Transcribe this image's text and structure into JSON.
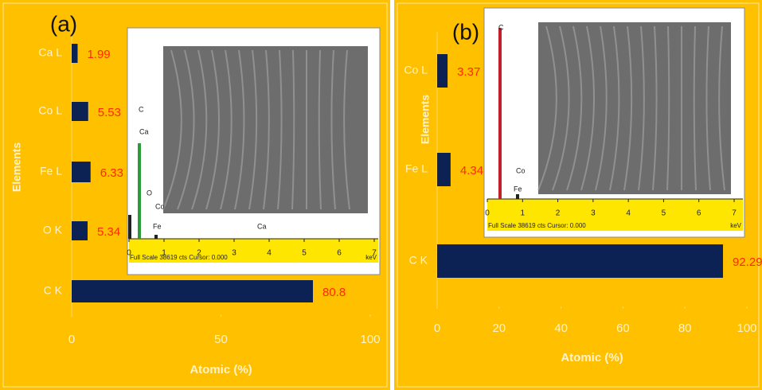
{
  "chart_data": [
    {
      "type": "bar",
      "orientation": "horizontal",
      "panel_label": "(a)",
      "categories": [
        "Ca L",
        "Co L",
        "Fe L",
        "O K",
        "C K"
      ],
      "values": [
        1.99,
        5.53,
        6.33,
        5.34,
        80.8
      ],
      "color": "#0c2154",
      "value_label_color": "#ff2a00",
      "background": "#ffc000",
      "xlim": [
        0,
        100
      ],
      "xticks": [
        0,
        50,
        100
      ],
      "xlabel": "Atomic (%)",
      "ylabel": "Elements",
      "inset": {
        "xticks": [
          0,
          1,
          2,
          3,
          4,
          5,
          6,
          7
        ],
        "unit": "keV",
        "caption": "Full Scale 38619 cts Cursor: 0.000",
        "peak_labels": [
          "C",
          "Ca",
          "O",
          "Co",
          "Fe",
          "Ca"
        ]
      }
    },
    {
      "type": "bar",
      "orientation": "horizontal",
      "panel_label": "(b)",
      "categories": [
        "Co L",
        "Fe L",
        "C K"
      ],
      "values": [
        3.37,
        4.34,
        92.29
      ],
      "color": "#0c2154",
      "value_label_color": "#ff2a00",
      "background": "#ffc000",
      "xlim": [
        0,
        100
      ],
      "xticks": [
        0,
        20,
        40,
        60,
        80,
        100
      ],
      "xlabel": "Atomic (%)",
      "ylabel": "Elements",
      "inset": {
        "xticks": [
          0,
          1,
          2,
          3,
          4,
          5,
          6,
          7
        ],
        "unit": "keV",
        "caption": "Full Scale 38619 cts Cursor: 0.000",
        "peak_labels": [
          "C",
          "Co",
          "Fe"
        ]
      }
    }
  ]
}
